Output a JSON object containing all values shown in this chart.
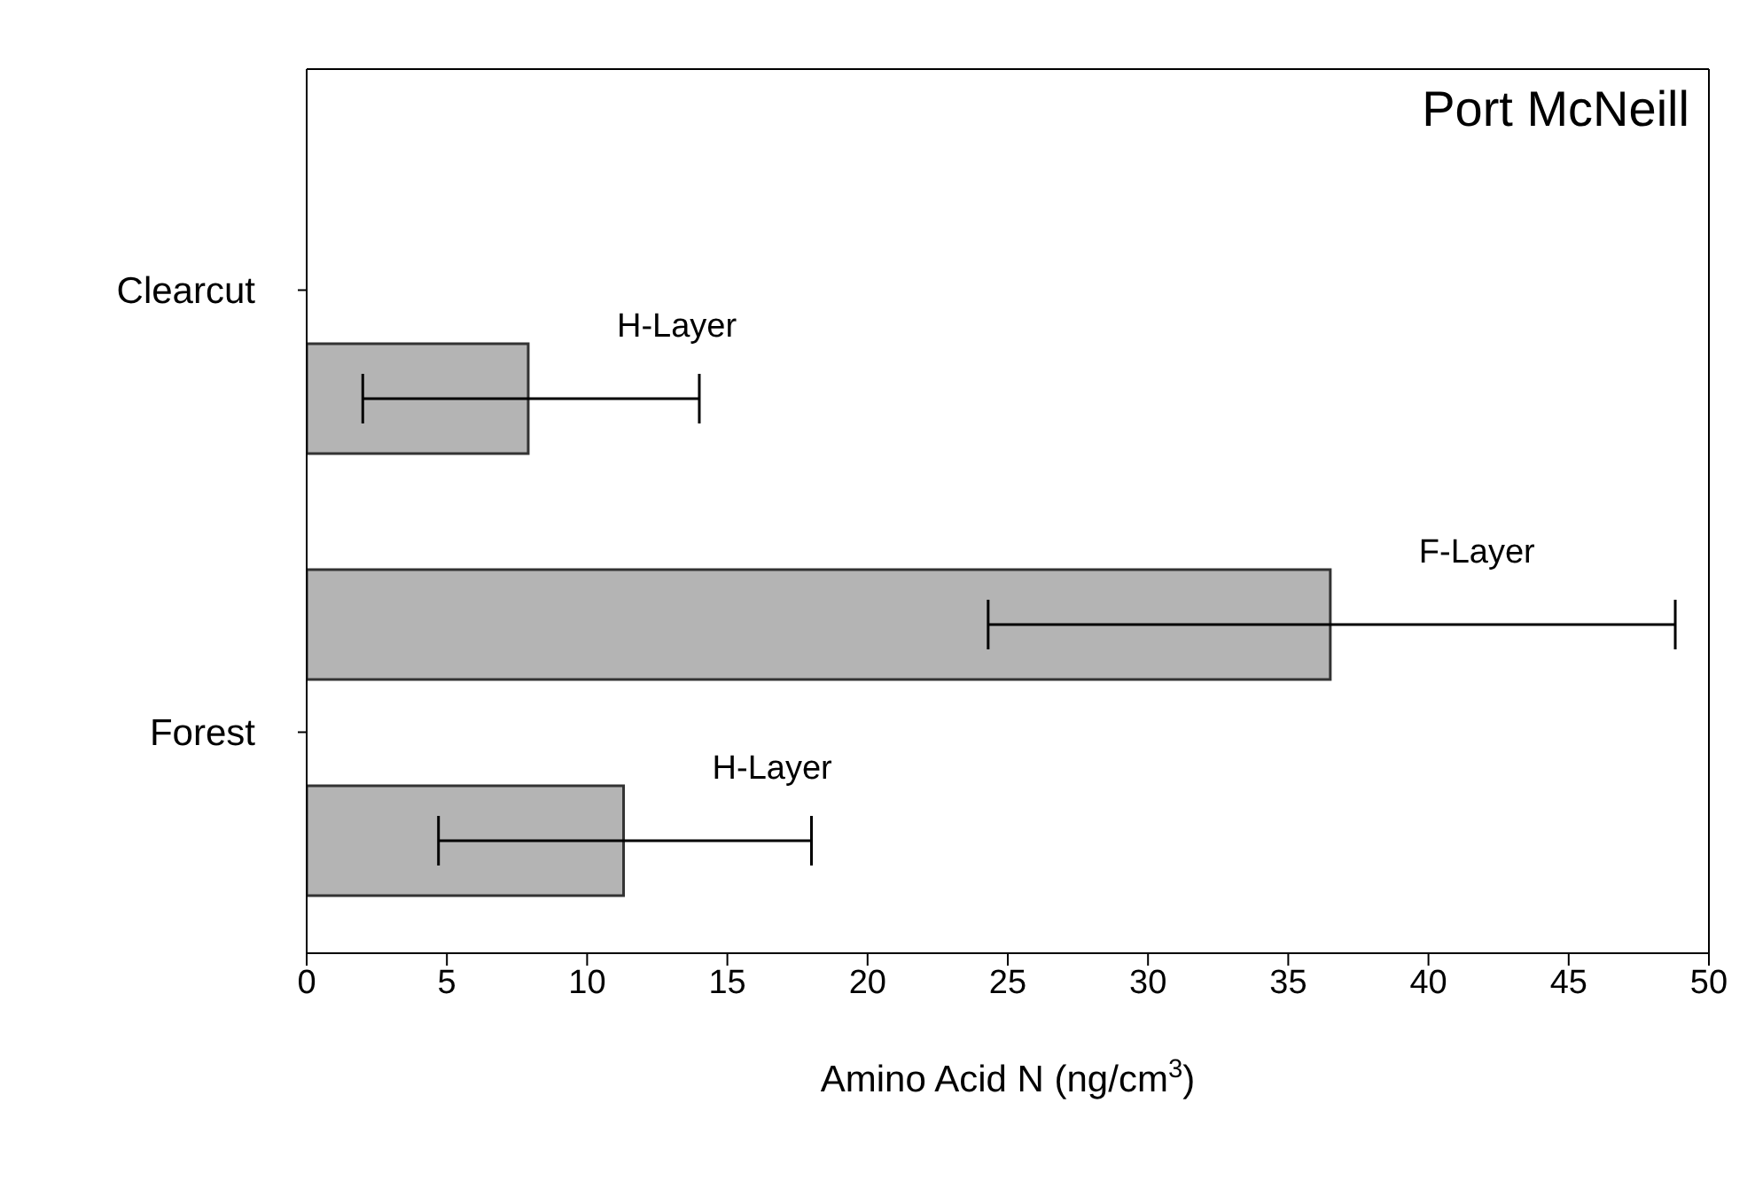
{
  "chart_data": {
    "type": "bar",
    "orientation": "horizontal",
    "title": "Port McNeill",
    "xlabel": "Amino Acid N (ng/cm$^{3}$)",
    "categories": [
      "Clearcut",
      "Forest"
    ],
    "series": [
      {
        "name": "F-Layer",
        "color": "#b4b4b4",
        "values": [
          null,
          36.5
        ],
        "errors": [
          null,
          [
            24.3,
            48.8
          ]
        ]
      },
      {
        "name": "H-Layer",
        "color": "#b4b4b4",
        "values": [
          7.9,
          11.3
        ],
        "errors": [
          [
            2,
            14
          ],
          [
            4.7,
            18
          ]
        ]
      }
    ],
    "xlim": [
      0,
      50
    ],
    "xticks": [
      0,
      5,
      10,
      15,
      20,
      25,
      30,
      35,
      40,
      45,
      50
    ]
  }
}
